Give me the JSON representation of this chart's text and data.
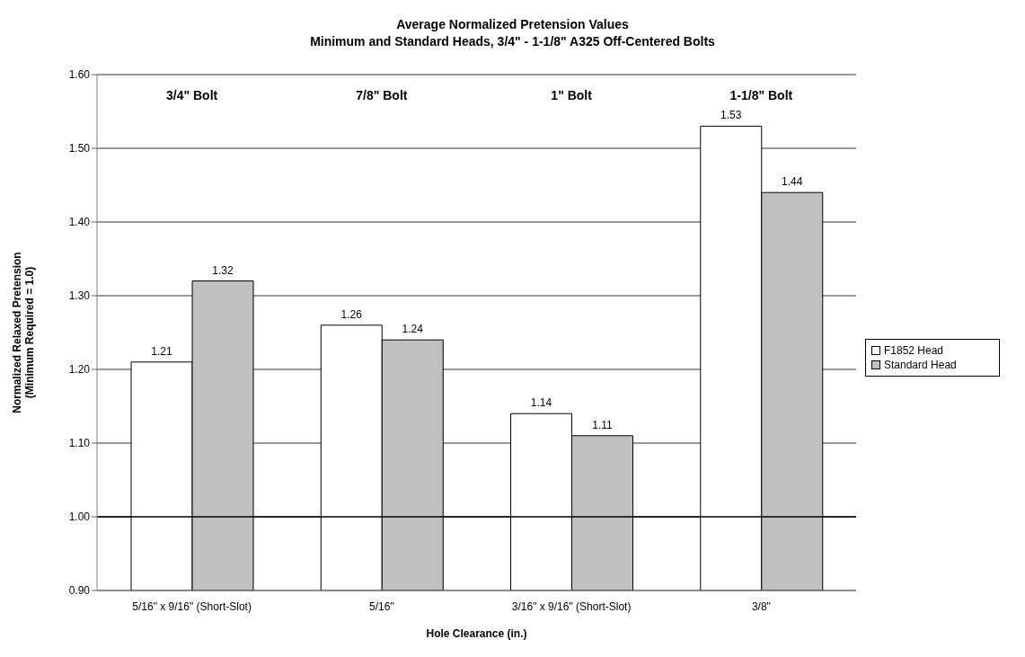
{
  "chart_data": {
    "type": "bar",
    "title": "Average Normalized Pretension Values\nMinimum and Standard Heads, 3/4\" - 1-1/8\" A325 Off-Centered Bolts",
    "xlabel": "Hole Clearance (in.)",
    "ylabel": "Normalized Relaxed Pretension\n(Minimum Required = 1.0)",
    "categories": [
      "5/16\" x 9/16\" (Short-Slot)",
      "5/16\"",
      "3/16\" x 9/16\" (Short-Slot)",
      "3/8\""
    ],
    "series": [
      {
        "name": "F1852 Head",
        "color": "#ffffff",
        "values": [
          1.21,
          1.26,
          1.14,
          1.53
        ]
      },
      {
        "name": "Standard Head",
        "color": "#c0c0c0",
        "values": [
          1.32,
          1.24,
          1.11,
          1.44
        ]
      }
    ],
    "ylim": [
      0.9,
      1.6
    ],
    "yticks": [
      {
        "value": 0.9,
        "label": "0.90"
      },
      {
        "value": 1,
        "label": "1.00"
      },
      {
        "value": 1.1,
        "label": "1.10"
      },
      {
        "value": 1.2,
        "label": "1.20"
      },
      {
        "value": 1.3,
        "label": "1.30"
      },
      {
        "value": 1.4,
        "label": "1.40"
      },
      {
        "value": 1.5,
        "label": "1.50"
      },
      {
        "value": 1.6,
        "label": "1.60"
      }
    ],
    "ref_lines": [
      {
        "axis": "y",
        "value": 1,
        "color": "#000000"
      }
    ],
    "annotations": [
      "3/4\" Bolt",
      "7/8\" Bolt",
      "1\" Bolt",
      "1-1/8\" Bolt"
    ],
    "data_labels": true,
    "grid": "y",
    "legend": "right"
  }
}
